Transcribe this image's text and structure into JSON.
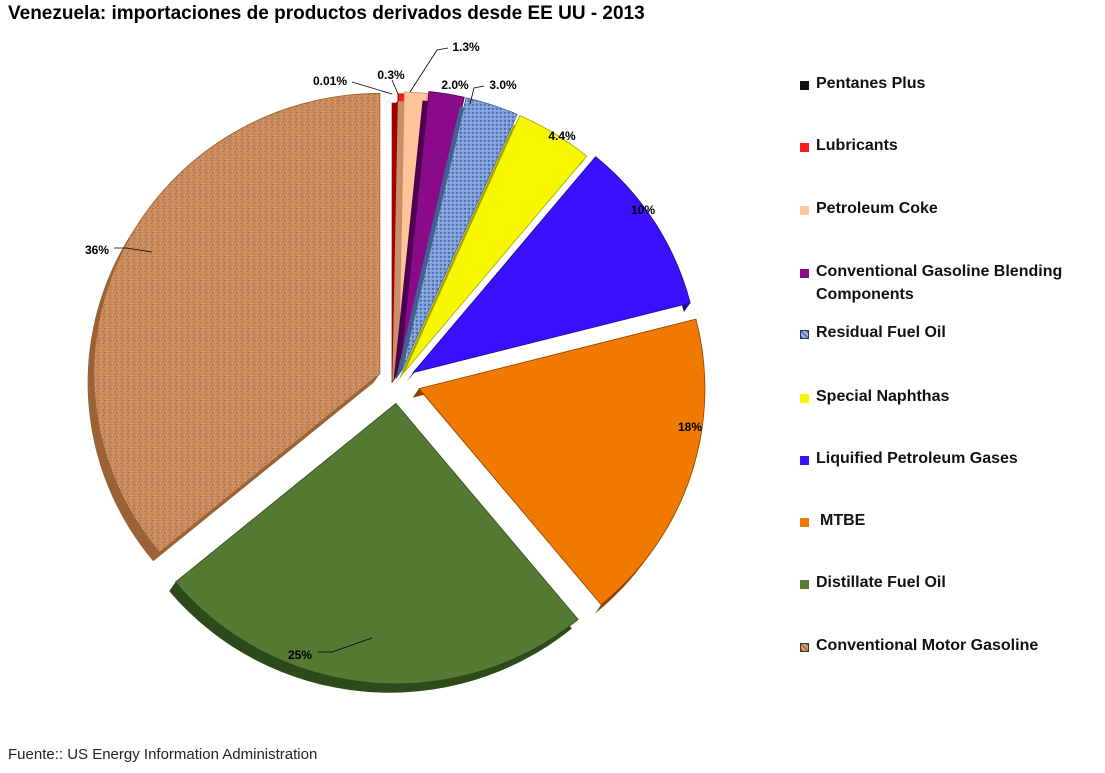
{
  "chart_data": {
    "type": "pie",
    "title": "Venezuela: importaciones de productos derivados desde EE UU - 2013",
    "source": "Fuente:: US Energy Information Administration",
    "legend_position": "right",
    "slices": [
      {
        "name": "Pentanes Plus",
        "value": 0.01,
        "label": "0.01%",
        "color": "#111111"
      },
      {
        "name": "Lubricants",
        "value": 0.3,
        "label": "0.3%",
        "color": "#ff1a1a"
      },
      {
        "name": "Petroleum Coke",
        "value": 1.3,
        "label": "1.3%",
        "color": "#ffc499"
      },
      {
        "name": "Conventional Gasoline Blending Components",
        "value": 2.0,
        "label": "2.0%",
        "color": "#8a0a8a"
      },
      {
        "name": "Residual Fuel Oil",
        "value": 3.0,
        "label": "3.0%",
        "color": "#7f9fd6"
      },
      {
        "name": "Special Naphthas",
        "value": 4.4,
        "label": "4.4%",
        "color": "#f7f700"
      },
      {
        "name": "Liquified Petroleum Gases",
        "value": 10,
        "label": "10%",
        "color": "#3a10ff"
      },
      {
        "name": "MTBE",
        "value": 18,
        "label": "18%",
        "color": "#f07a00"
      },
      {
        "name": "Distillate Fuel Oil",
        "value": 25,
        "label": "25%",
        "color": "#567a34"
      },
      {
        "name": "Conventional Motor Gasoline",
        "value": 36,
        "label": "36%",
        "color": "#c88a5a"
      }
    ]
  }
}
